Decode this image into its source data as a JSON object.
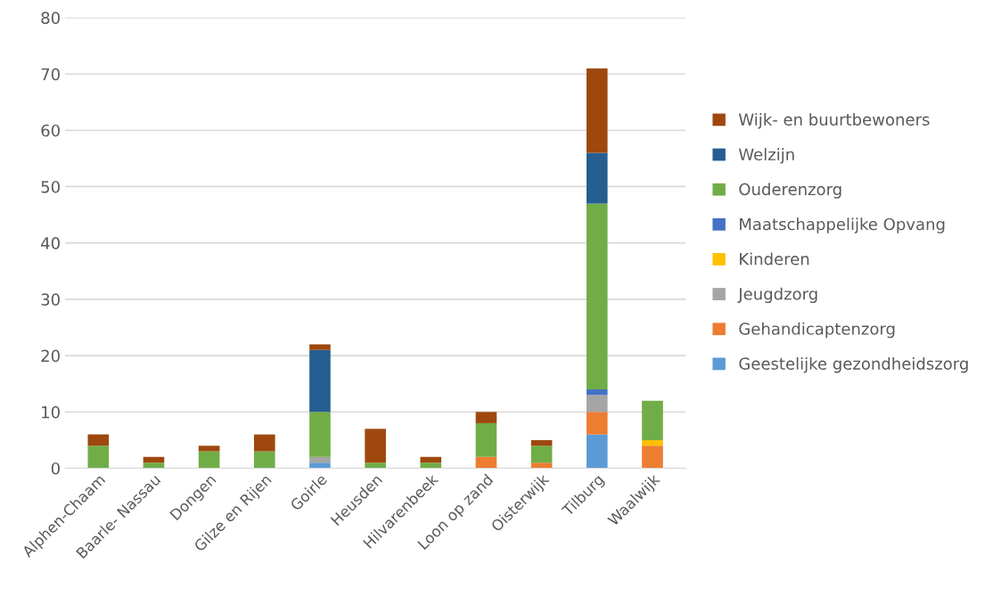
{
  "chart_data": {
    "type": "bar",
    "stacked": true,
    "categories": [
      "Alphen-Chaam",
      "Baarle- Nassau",
      "Dongen",
      "Gilze en Rijen",
      "Goirle",
      "Heusden",
      "Hilvarenbeek",
      "Loon op zand",
      "Oisterwijk",
      "Tilburg",
      "Waalwijk"
    ],
    "series": [
      {
        "name": "Geestelijke gezondheidszorg",
        "color": "#5b9bd5",
        "values": [
          0,
          0,
          0,
          0,
          1,
          0,
          0,
          0,
          0,
          6,
          0
        ]
      },
      {
        "name": "Gehandicaptenzorg",
        "color": "#ed7d31",
        "values": [
          0,
          0,
          0,
          0,
          0,
          0,
          0,
          2,
          1,
          4,
          4
        ]
      },
      {
        "name": "Jeugdzorg",
        "color": "#a5a5a5",
        "values": [
          0,
          0,
          0,
          0,
          1,
          0,
          0,
          0,
          0,
          3,
          0
        ]
      },
      {
        "name": "Kinderen",
        "color": "#ffc000",
        "values": [
          0,
          0,
          0,
          0,
          0,
          0,
          0,
          0,
          0,
          0,
          1
        ]
      },
      {
        "name": "Maatschappelijke Opvang",
        "color": "#4472c4",
        "values": [
          0,
          0,
          0,
          0,
          0,
          0,
          0,
          0,
          0,
          1,
          0
        ]
      },
      {
        "name": "Ouderenzorg",
        "color": "#70ad47",
        "values": [
          4,
          1,
          3,
          3,
          8,
          1,
          1,
          6,
          3,
          33,
          7
        ]
      },
      {
        "name": "Welzijn",
        "color": "#255e91",
        "values": [
          0,
          0,
          0,
          0,
          11,
          0,
          0,
          0,
          0,
          9,
          0
        ]
      },
      {
        "name": "Wijk- en buurtbewoners",
        "color": "#9e480e",
        "values": [
          2,
          1,
          1,
          3,
          1,
          6,
          1,
          2,
          1,
          15,
          0
        ]
      }
    ],
    "ylim": [
      0,
      80
    ],
    "yticks": [
      0,
      10,
      20,
      30,
      40,
      50,
      60,
      70,
      80
    ],
    "grid": "y",
    "legend": "right"
  }
}
